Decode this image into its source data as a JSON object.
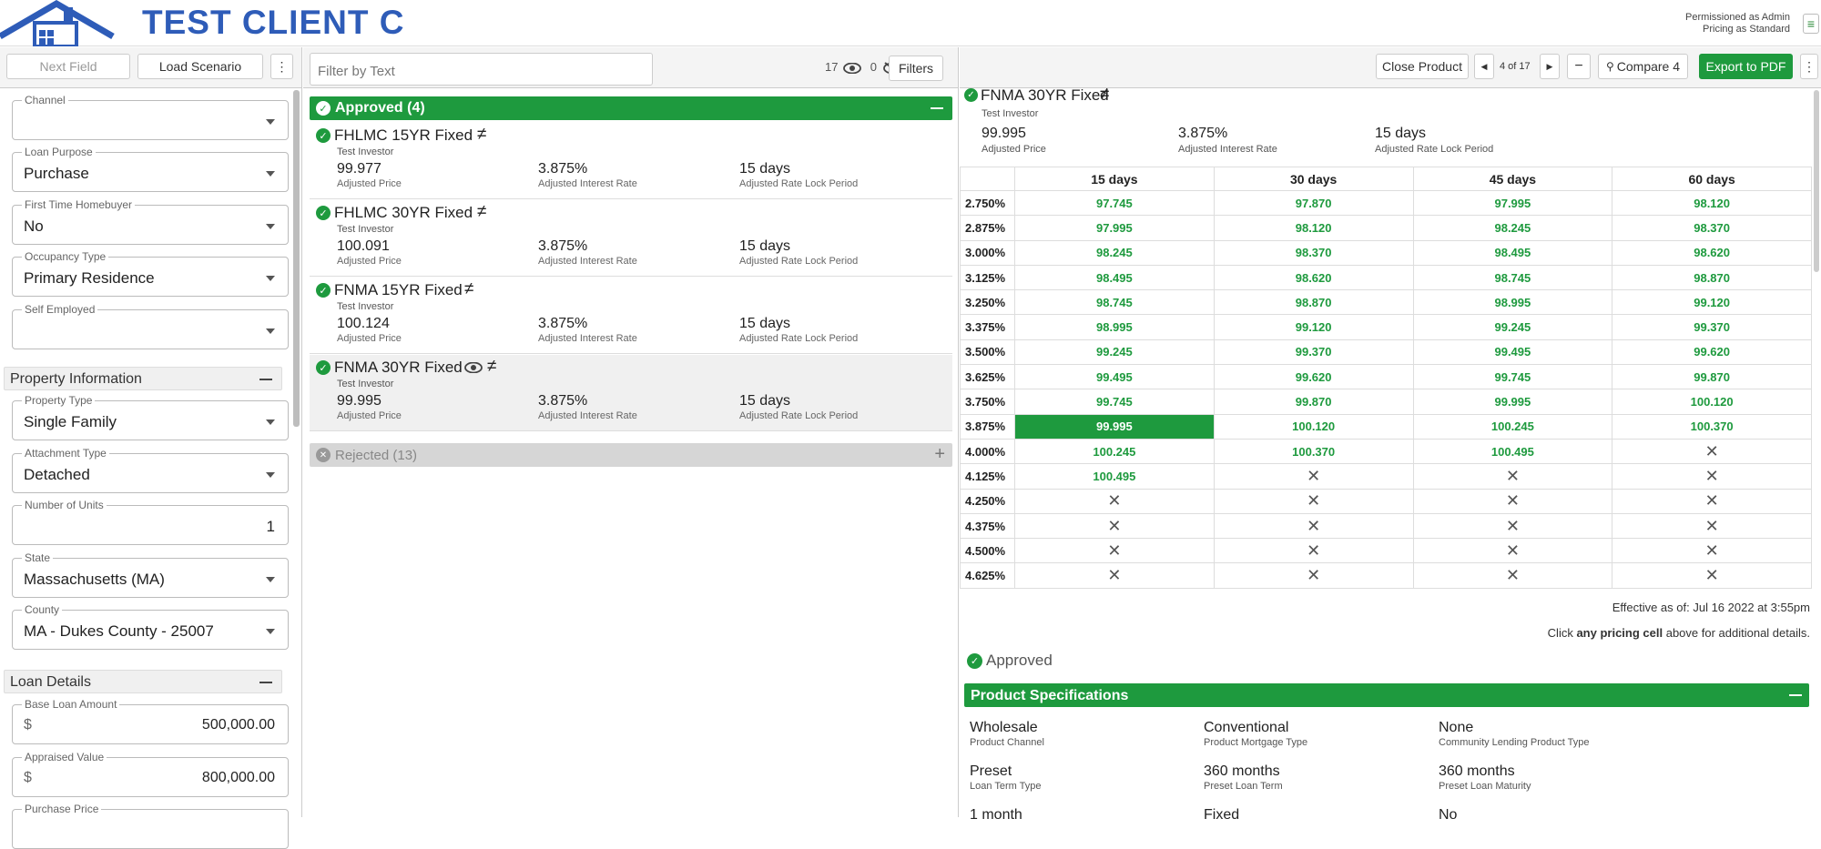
{
  "header": {
    "brand": "TEST CLIENT C",
    "permission_line1": "Permissioned as Admin",
    "permission_line2": "Pricing as Standard",
    "menu_icon": "hamburger-icon",
    "colors": {
      "brand": "#2e5cb8",
      "accent": "#1e9a3e"
    }
  },
  "left": {
    "next_field": "Next Field",
    "load_scenario": "Load Scenario",
    "more": "⋮",
    "fields": {
      "channel": {
        "label": "Channel",
        "value": ""
      },
      "loan_purpose": {
        "label": "Loan Purpose",
        "value": "Purchase"
      },
      "first_time": {
        "label": "First Time Homebuyer",
        "value": "No"
      },
      "occupancy": {
        "label": "Occupancy Type",
        "value": "Primary Residence"
      },
      "self_employed": {
        "label": "Self Employed",
        "value": ""
      },
      "property_type": {
        "label": "Property Type",
        "value": "Single Family"
      },
      "attachment": {
        "label": "Attachment Type",
        "value": "Detached"
      },
      "units": {
        "label": "Number of Units",
        "value": "1"
      },
      "state": {
        "label": "State",
        "value": "Massachusetts (MA)"
      },
      "county": {
        "label": "County",
        "value": "MA - Dukes County - 25007"
      },
      "base_loan": {
        "label": "Base Loan Amount",
        "prefix": "$",
        "value": "500,000.00"
      },
      "appraised": {
        "label": "Appraised Value",
        "prefix": "$",
        "value": "800,000.00"
      },
      "purchase_price": {
        "label": "Purchase Price",
        "value": ""
      }
    },
    "sections": {
      "property": "Property Information",
      "loan": "Loan Details"
    }
  },
  "middle": {
    "filter_placeholder": "Filter by Text",
    "visible_count": "17",
    "hidden_count": "0",
    "filters": "Filters",
    "approved_header": "Approved (4)",
    "rejected_header": "Rejected (13)",
    "labels": {
      "price": "Adjusted Price",
      "rate": "Adjusted Interest Rate",
      "lock": "Adjusted Rate Lock Period"
    },
    "products": [
      {
        "name": "FHLMC 15YR Fixed",
        "investor": "Test Investor",
        "price": "99.977",
        "rate": "3.875%",
        "lock": "15 days"
      },
      {
        "name": "FHLMC 30YR Fixed",
        "investor": "Test Investor",
        "price": "100.091",
        "rate": "3.875%",
        "lock": "15 days"
      },
      {
        "name": "FNMA 15YR Fixed",
        "investor": "Test Investor",
        "price": "100.124",
        "rate": "3.875%",
        "lock": "15 days"
      },
      {
        "name": "FNMA 30YR Fixed",
        "investor": "Test Investor",
        "price": "99.995",
        "rate": "3.875%",
        "lock": "15 days"
      }
    ]
  },
  "right": {
    "close_product": "Close Product",
    "page_indicator": "4 of 17",
    "compare": "Compare 4",
    "export": "Export to PDF",
    "product": {
      "name": "FNMA 30YR Fixed",
      "investor": "Test Investor",
      "price": "99.995",
      "price_label": "Adjusted Price",
      "rate": "3.875%",
      "rate_label": "Adjusted Interest Rate",
      "lock": "15 days",
      "lock_label": "Adjusted Rate Lock Period"
    },
    "grid": {
      "columns": [
        "15 days",
        "30 days",
        "45 days",
        "60 days"
      ],
      "rows": [
        {
          "rate": "2.750%",
          "vals": [
            "97.745",
            "97.870",
            "97.995",
            "98.120"
          ]
        },
        {
          "rate": "2.875%",
          "vals": [
            "97.995",
            "98.120",
            "98.245",
            "98.370"
          ]
        },
        {
          "rate": "3.000%",
          "vals": [
            "98.245",
            "98.370",
            "98.495",
            "98.620"
          ]
        },
        {
          "rate": "3.125%",
          "vals": [
            "98.495",
            "98.620",
            "98.745",
            "98.870"
          ]
        },
        {
          "rate": "3.250%",
          "vals": [
            "98.745",
            "98.870",
            "98.995",
            "99.120"
          ]
        },
        {
          "rate": "3.375%",
          "vals": [
            "98.995",
            "99.120",
            "99.245",
            "99.370"
          ]
        },
        {
          "rate": "3.500%",
          "vals": [
            "99.245",
            "99.370",
            "99.495",
            "99.620"
          ]
        },
        {
          "rate": "3.625%",
          "vals": [
            "99.495",
            "99.620",
            "99.745",
            "99.870"
          ]
        },
        {
          "rate": "3.750%",
          "vals": [
            "99.745",
            "99.870",
            "99.995",
            "100.120"
          ]
        },
        {
          "rate": "3.875%",
          "vals": [
            "99.995",
            "100.120",
            "100.245",
            "100.370"
          ]
        },
        {
          "rate": "4.000%",
          "vals": [
            "100.245",
            "100.370",
            "100.495",
            "✕"
          ]
        },
        {
          "rate": "4.125%",
          "vals": [
            "100.495",
            "✕",
            "✕",
            "✕"
          ]
        },
        {
          "rate": "4.250%",
          "vals": [
            "✕",
            "✕",
            "✕",
            "✕"
          ]
        },
        {
          "rate": "4.375%",
          "vals": [
            "✕",
            "✕",
            "✕",
            "✕"
          ]
        },
        {
          "rate": "4.500%",
          "vals": [
            "✕",
            "✕",
            "✕",
            "✕"
          ]
        },
        {
          "rate": "4.625%",
          "vals": [
            "✕",
            "✕",
            "✕",
            "✕"
          ]
        }
      ],
      "selected": {
        "rate": "3.875%",
        "column": "15 days"
      }
    },
    "effective": "Effective as of: Jul 16 2022 at 3:55pm",
    "click_note_pre": "Click ",
    "click_note_bold": "any pricing cell",
    "click_note_post": " above for additional details.",
    "approved": "Approved",
    "spec_title": "Product Specifications",
    "specs": [
      {
        "value": "Wholesale",
        "label": "Product Channel"
      },
      {
        "value": "Conventional",
        "label": "Product Mortgage Type"
      },
      {
        "value": "None",
        "label": "Community Lending Product Type"
      },
      {
        "value": "Preset",
        "label": "Loan Term Type"
      },
      {
        "value": "360 months",
        "label": "Preset Loan Term"
      },
      {
        "value": "360 months",
        "label": "Preset Loan Maturity"
      },
      {
        "value": "1 month",
        "label": ""
      },
      {
        "value": "Fixed",
        "label": ""
      },
      {
        "value": "No",
        "label": ""
      }
    ]
  }
}
